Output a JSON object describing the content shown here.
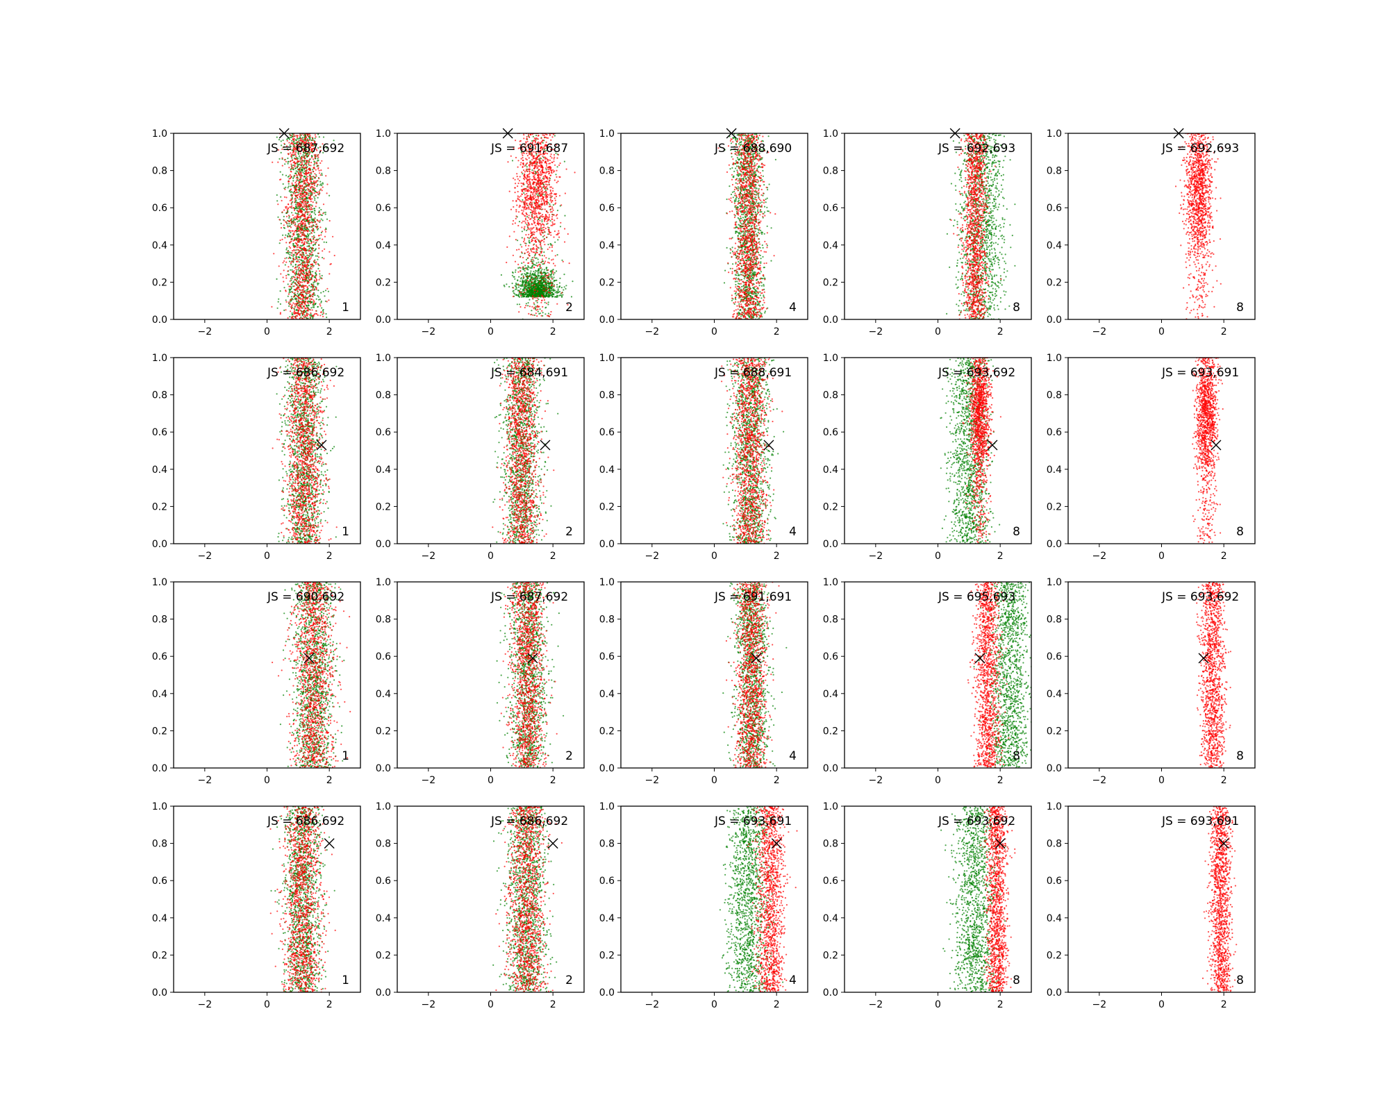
{
  "figure": {
    "rows": 4,
    "cols": 5,
    "xlim": [
      -3,
      3
    ],
    "ylim": [
      0,
      1
    ],
    "xticks": [
      -2,
      0,
      2
    ],
    "yticks": [
      0.0,
      0.2,
      0.4,
      0.6,
      0.8,
      1.0
    ],
    "ytick_labels": [
      "0.0",
      "0.2",
      "0.4",
      "0.6",
      "0.8",
      "1.0"
    ],
    "xtick_labels": [
      "−2",
      "0",
      "2"
    ],
    "colors": {
      "red": "#ff0000",
      "green": "#008000",
      "marker": "#000000",
      "axes": "#000000"
    },
    "grid": false
  },
  "chart_data": [
    {
      "type": "scatter",
      "row": 0,
      "col": 0,
      "annotation": "JS = 687,692",
      "label": "1",
      "marker": {
        "x": 0.55,
        "y": 1.0
      },
      "red": {
        "center": 1.15,
        "spread": 0.55,
        "ydist": "uniform"
      },
      "green": {
        "center": 1.15,
        "spread": 0.55,
        "ydist": "uniform"
      }
    },
    {
      "type": "scatter",
      "row": 0,
      "col": 1,
      "annotation": "JS = 691,687",
      "label": "2",
      "marker": {
        "x": 0.55,
        "y": 1.0
      },
      "red": {
        "center": 1.5,
        "spread": 0.6,
        "ydist": "top"
      },
      "green": {
        "center": 1.5,
        "spread": 0.6,
        "ydist": "bottom"
      }
    },
    {
      "type": "scatter",
      "row": 0,
      "col": 2,
      "annotation": "JS = 688,690",
      "label": "4",
      "marker": {
        "x": 0.55,
        "y": 1.0
      },
      "red": {
        "center": 1.1,
        "spread": 0.45,
        "ydist": "uniform"
      },
      "green": {
        "center": 1.1,
        "spread": 0.45,
        "ydist": "uniform"
      }
    },
    {
      "type": "scatter",
      "row": 0,
      "col": 3,
      "annotation": "JS = 692,693",
      "label": "8",
      "marker": {
        "x": 0.55,
        "y": 1.0
      },
      "red": {
        "center": 1.2,
        "spread": 0.35,
        "ydist": "uniform"
      },
      "green": {
        "center": 1.4,
        "spread": 0.65,
        "ydist": "uniform"
      }
    },
    {
      "type": "scatter",
      "row": 0,
      "col": 4,
      "annotation": "JS = 692,693",
      "label": "8",
      "marker": {
        "x": 0.55,
        "y": 1.0
      },
      "red": {
        "center": 1.2,
        "spread": 0.4,
        "ydist": "top"
      },
      "green": null
    },
    {
      "type": "scatter",
      "row": 1,
      "col": 0,
      "annotation": "JS = 686,692",
      "label": "1",
      "marker": {
        "x": 1.75,
        "y": 0.53
      },
      "red": {
        "center": 1.2,
        "spread": 0.55,
        "ydist": "uniform"
      },
      "green": {
        "center": 1.2,
        "spread": 0.55,
        "ydist": "uniform"
      }
    },
    {
      "type": "scatter",
      "row": 1,
      "col": 1,
      "annotation": "JS = 684,691",
      "label": "2",
      "marker": {
        "x": 1.75,
        "y": 0.53
      },
      "red": {
        "center": 1.0,
        "spread": 0.5,
        "ydist": "uniform"
      },
      "green": {
        "center": 1.0,
        "spread": 0.55,
        "ydist": "uniform"
      }
    },
    {
      "type": "scatter",
      "row": 1,
      "col": 2,
      "annotation": "JS = 688,691",
      "label": "4",
      "marker": {
        "x": 1.75,
        "y": 0.53
      },
      "red": {
        "center": 1.15,
        "spread": 0.5,
        "ydist": "uniform"
      },
      "green": {
        "center": 1.15,
        "spread": 0.55,
        "ydist": "uniform"
      }
    },
    {
      "type": "scatter",
      "row": 1,
      "col": 3,
      "annotation": "JS = 693,692",
      "label": "8",
      "marker": {
        "x": 1.75,
        "y": 0.53
      },
      "red": {
        "center": 1.35,
        "spread": 0.3,
        "ydist": "top"
      },
      "green": {
        "center": 1.0,
        "spread": 0.6,
        "ydist": "uniform"
      }
    },
    {
      "type": "scatter",
      "row": 1,
      "col": 4,
      "annotation": "JS = 693,691",
      "label": "8",
      "marker": {
        "x": 1.75,
        "y": 0.53
      },
      "red": {
        "center": 1.45,
        "spread": 0.3,
        "ydist": "top"
      },
      "green": null
    },
    {
      "type": "scatter",
      "row": 2,
      "col": 0,
      "annotation": "JS = 690,692",
      "label": "1",
      "marker": {
        "x": 1.35,
        "y": 0.59
      },
      "red": {
        "center": 1.5,
        "spread": 0.6,
        "ydist": "uniform"
      },
      "green": {
        "center": 1.5,
        "spread": 0.6,
        "ydist": "uniform"
      }
    },
    {
      "type": "scatter",
      "row": 2,
      "col": 1,
      "annotation": "JS = 687,692",
      "label": "2",
      "marker": {
        "x": 1.35,
        "y": 0.59
      },
      "red": {
        "center": 1.2,
        "spread": 0.5,
        "ydist": "uniform"
      },
      "green": {
        "center": 1.2,
        "spread": 0.55,
        "ydist": "uniform"
      }
    },
    {
      "type": "scatter",
      "row": 2,
      "col": 2,
      "annotation": "JS = 691,691",
      "label": "4",
      "marker": {
        "x": 1.35,
        "y": 0.59
      },
      "red": {
        "center": 1.2,
        "spread": 0.45,
        "ydist": "uniform"
      },
      "green": {
        "center": 1.2,
        "spread": 0.5,
        "ydist": "uniform"
      }
    },
    {
      "type": "scatter",
      "row": 2,
      "col": 3,
      "annotation": "JS = 695,693",
      "label": "8",
      "marker": {
        "x": 1.35,
        "y": 0.59
      },
      "red": {
        "center": 1.6,
        "spread": 0.35,
        "ydist": "uniform"
      },
      "green": {
        "center": 2.3,
        "spread": 0.55,
        "ydist": "uniform"
      }
    },
    {
      "type": "scatter",
      "row": 2,
      "col": 4,
      "annotation": "JS = 693,692",
      "label": "8",
      "marker": {
        "x": 1.35,
        "y": 0.59
      },
      "red": {
        "center": 1.65,
        "spread": 0.35,
        "ydist": "uniform"
      },
      "green": null
    },
    {
      "type": "scatter",
      "row": 3,
      "col": 0,
      "annotation": "JS = 686,692",
      "label": "1",
      "marker": {
        "x": 2.0,
        "y": 0.8
      },
      "red": {
        "center": 1.15,
        "spread": 0.55,
        "ydist": "uniform"
      },
      "green": {
        "center": 1.15,
        "spread": 0.55,
        "ydist": "uniform"
      }
    },
    {
      "type": "scatter",
      "row": 3,
      "col": 1,
      "annotation": "JS = 686,692",
      "label": "2",
      "marker": {
        "x": 2.0,
        "y": 0.8
      },
      "red": {
        "center": 1.15,
        "spread": 0.55,
        "ydist": "uniform"
      },
      "green": {
        "center": 1.15,
        "spread": 0.6,
        "ydist": "uniform"
      }
    },
    {
      "type": "scatter",
      "row": 3,
      "col": 2,
      "annotation": "JS = 693,691",
      "label": "4",
      "marker": {
        "x": 2.0,
        "y": 0.8
      },
      "red": {
        "center": 1.8,
        "spread": 0.4,
        "ydist": "uniform"
      },
      "green": {
        "center": 1.1,
        "spread": 0.6,
        "ydist": "uniform"
      }
    },
    {
      "type": "scatter",
      "row": 3,
      "col": 3,
      "annotation": "JS = 693,692",
      "label": "8",
      "marker": {
        "x": 2.0,
        "y": 0.8
      },
      "red": {
        "center": 1.9,
        "spread": 0.3,
        "ydist": "uniform"
      },
      "green": {
        "center": 1.2,
        "spread": 0.6,
        "ydist": "uniform"
      }
    },
    {
      "type": "scatter",
      "row": 3,
      "col": 4,
      "annotation": "JS = 693,691",
      "label": "8",
      "marker": {
        "x": 2.0,
        "y": 0.8
      },
      "red": {
        "center": 1.9,
        "spread": 0.3,
        "ydist": "uniform"
      },
      "green": null
    }
  ]
}
